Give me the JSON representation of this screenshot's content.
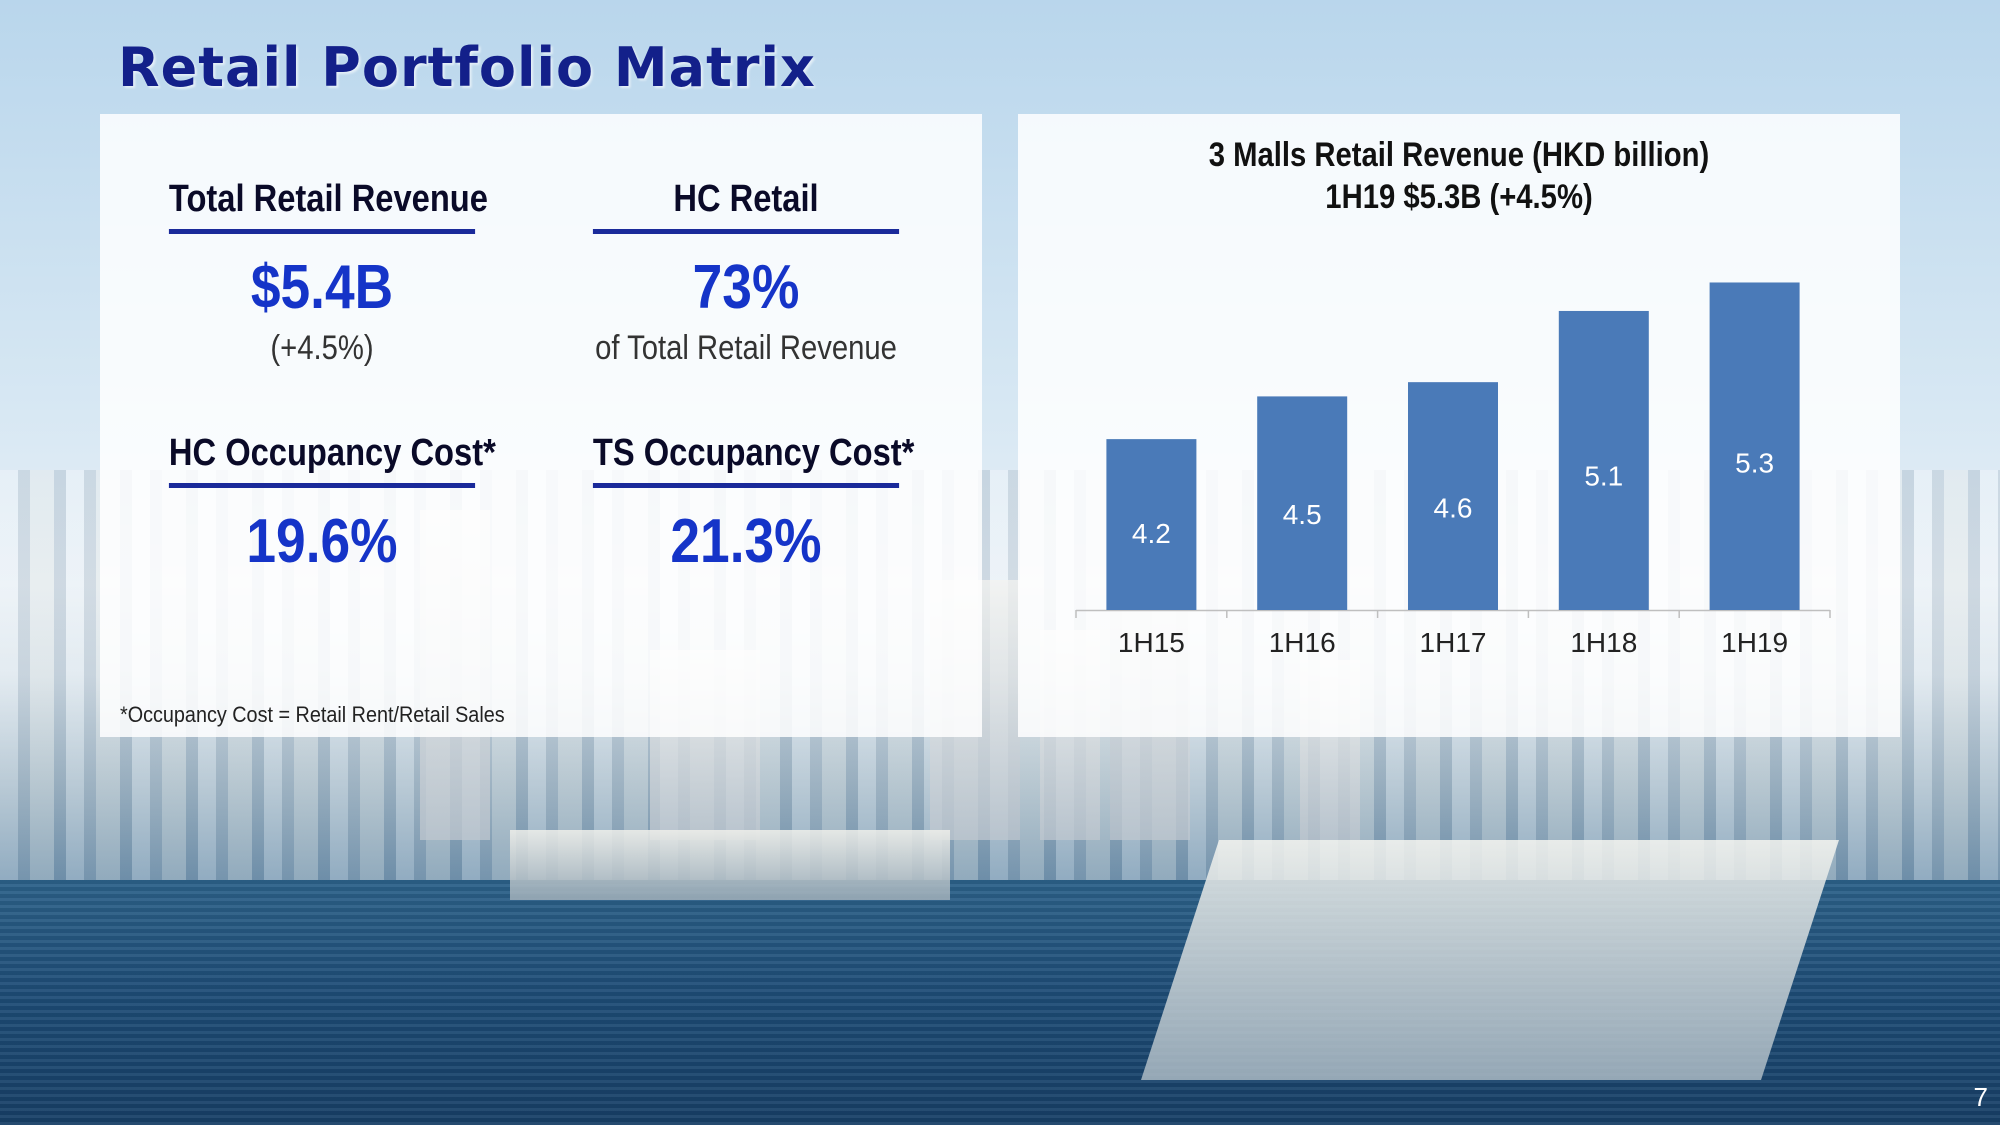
{
  "title": "Retail Portfolio Matrix",
  "kpis": {
    "total_revenue": {
      "head": "Total Retail Revenue",
      "value": "$5.4B",
      "sub": "(+4.5%)"
    },
    "hc_retail": {
      "head": "HC Retail",
      "value": "73%",
      "sub": "of Total Retail Revenue"
    },
    "hc_occupancy": {
      "head": "HC Occupancy Cost*",
      "value": "19.6%"
    },
    "ts_occupancy": {
      "head": "TS Occupancy Cost*",
      "value": "21.3%"
    }
  },
  "footnote": "*Occupancy Cost = Retail Rent/Retail Sales",
  "page_number": "7",
  "colors": {
    "bar": "#4a7ab8",
    "accent": "#1534c8",
    "title": "#13208a",
    "underline": "#1a2a9a"
  },
  "chart_data": {
    "type": "bar",
    "title": "3 Malls Retail Revenue (HKD billion)",
    "subtitle": "1H19 $5.3B (+4.5%)",
    "categories": [
      "1H15",
      "1H16",
      "1H17",
      "1H18",
      "1H19"
    ],
    "values": [
      4.2,
      4.5,
      4.6,
      5.1,
      5.3
    ],
    "data_labels": [
      "4.2",
      "4.5",
      "4.6",
      "5.1",
      "5.3"
    ],
    "ylim": [
      3.0,
      5.5
    ],
    "grid": false,
    "legend": "none"
  }
}
